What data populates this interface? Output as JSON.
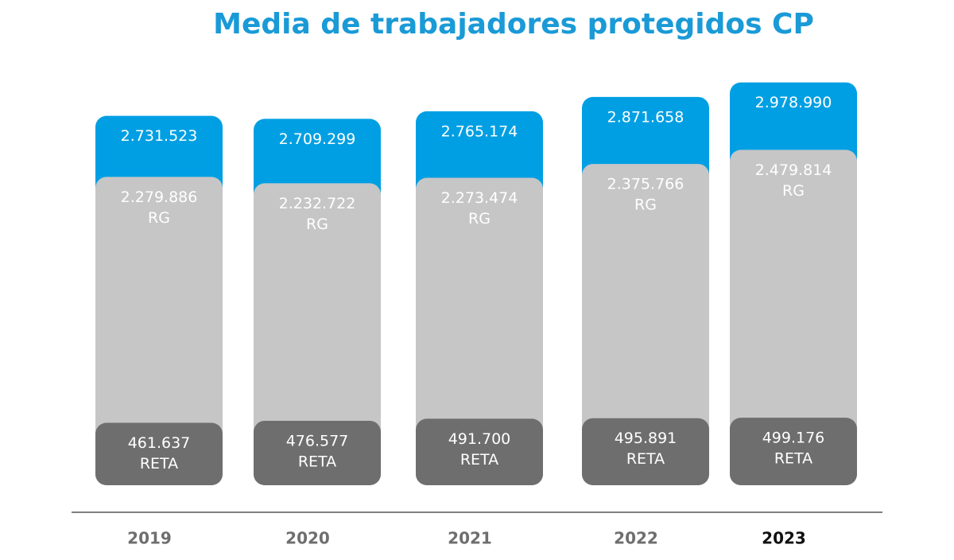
{
  "chart_data": {
    "type": "bar",
    "title": "Media de trabajadores protegidos CP",
    "categories": [
      "2019",
      "2020",
      "2021",
      "2022",
      "2023"
    ],
    "highlight_index": 4,
    "ylim": [
      0,
      3000000
    ],
    "series": [
      {
        "color": "#009fe3",
        "values": [
          2731523,
          2709299,
          2765174,
          2871658,
          2978990
        ],
        "value_labels": [
          "2.731.523",
          "2.709.299",
          "2.765.174",
          "2.871.658",
          "2.978.990"
        ]
      },
      {
        "name": "RG",
        "color": "#c6c6c6",
        "values": [
          2279886,
          2232722,
          2273474,
          2375766,
          2479814
        ],
        "value_labels": [
          "2.279.886",
          "2.232.722",
          "2.273.474",
          "2.375.766",
          "2.479.814"
        ]
      },
      {
        "name": "RETA",
        "color": "#6f6e6f",
        "values": [
          461637,
          476577,
          491700,
          495891,
          499176
        ],
        "value_labels": [
          "461.637",
          "476.577",
          "491.700",
          "495.891",
          "499.176"
        ]
      }
    ]
  }
}
